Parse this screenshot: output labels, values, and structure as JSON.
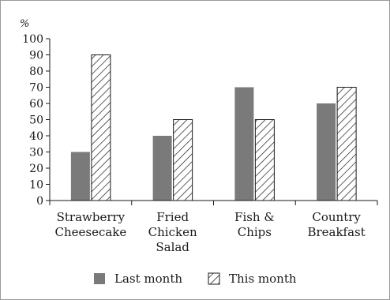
{
  "chart_data": {
    "type": "bar",
    "y_unit": "%",
    "categories": [
      [
        "Strawberry",
        "Cheesecake"
      ],
      [
        "Fried",
        "Chicken",
        "Salad"
      ],
      [
        "Fish &",
        "Chips"
      ],
      [
        "Country",
        "Breakfast"
      ]
    ],
    "series": [
      {
        "name": "Last month",
        "values": [
          30,
          40,
          70,
          60
        ],
        "fill": "#7a7a7a"
      },
      {
        "name": "This month",
        "values": [
          90,
          50,
          50,
          70
        ],
        "fill": "hatch"
      }
    ],
    "ylim": [
      0,
      100
    ],
    "yticks": [
      0,
      10,
      20,
      30,
      40,
      50,
      60,
      70,
      80,
      90,
      100
    ],
    "grid": false,
    "legend_position": "bottom"
  }
}
